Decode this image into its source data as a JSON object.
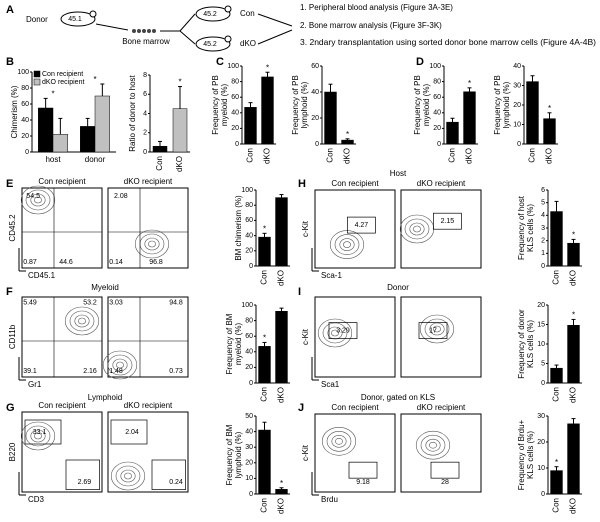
{
  "panel_a": {
    "label": "A",
    "donor": "Donor",
    "donor_mouse": "45.1",
    "bone_marrow": "Bone marrow",
    "recipient_mice": [
      "45.2",
      "45.2"
    ],
    "groups": [
      "Con",
      "dKO"
    ],
    "steps": [
      "1. Peripheral blood analysis (Figure 3A-3E)",
      "2. Bone marrow analysis (Figure 3F-3K)",
      "3. 2ndary transplantation using sorted donor bone marrow cells (Figure 4A-4B)"
    ]
  },
  "chart_data": [
    {
      "type": "bar",
      "panel": "B",
      "ylabel": [
        "Chimerism (%)"
      ],
      "categories": [
        "host",
        "donor"
      ],
      "series": [
        {
          "name": "Con recipient",
          "color": "#000000",
          "values": [
            55,
            32
          ],
          "errors": [
            12,
            10
          ]
        },
        {
          "name": "dKO recipient",
          "color": "#c0c0c0",
          "values": [
            22,
            70
          ],
          "errors": [
            20,
            15
          ]
        }
      ],
      "stars": [
        "*",
        "*"
      ],
      "ylim": [
        0,
        100
      ],
      "yticks": [
        0,
        20,
        40,
        60,
        80,
        100
      ]
    },
    {
      "type": "bar",
      "ylabel": [
        "Ratio of donor to host"
      ],
      "categories": [
        "Con",
        "dKO"
      ],
      "colors": [
        "#000000",
        "#c0c0c0"
      ],
      "values": [
        0.6,
        4.5
      ],
      "errors": [
        0.5,
        2.3
      ],
      "stars": [
        null,
        "*"
      ],
      "ylim": [
        0,
        8
      ],
      "yticks": [
        0,
        2,
        4,
        6,
        8
      ]
    },
    {
      "type": "bar",
      "panel": "C",
      "ylabel": [
        "Frequency of PB",
        "myeloid (%)"
      ],
      "categories": [
        "Con",
        "dKO"
      ],
      "color": "#000000",
      "values": [
        47,
        86
      ],
      "errors": [
        6,
        6
      ],
      "stars": [
        null,
        "*"
      ],
      "ylim": [
        0,
        100
      ],
      "yticks": [
        0,
        20,
        40,
        60,
        80,
        100
      ]
    },
    {
      "type": "bar",
      "ylabel": [
        "Frequency of PB",
        "lymphoid (%)"
      ],
      "categories": [
        "Con",
        "dKO"
      ],
      "color": "#000000",
      "values": [
        40,
        3
      ],
      "errors": [
        6,
        1
      ],
      "stars": [
        null,
        "*"
      ],
      "ylim": [
        0,
        60
      ],
      "yticks": [
        0,
        20,
        40,
        60
      ]
    },
    {
      "type": "bar",
      "panel": "D",
      "ylabel": [
        "Frequency of PB",
        "myeloid (%)"
      ],
      "categories": [
        "Con",
        "dKO"
      ],
      "color": "#000000",
      "values": [
        28,
        67
      ],
      "errors": [
        5,
        5
      ],
      "stars": [
        null,
        "*"
      ],
      "ylim": [
        0,
        100
      ],
      "yticks": [
        0,
        20,
        40,
        60,
        80,
        100
      ]
    },
    {
      "type": "bar",
      "ylabel": [
        "Frequency of PB",
        "lymphoid (%)"
      ],
      "categories": [
        "Con",
        "dKO"
      ],
      "color": "#000000",
      "values": [
        32,
        13
      ],
      "errors": [
        3,
        3
      ],
      "stars": [
        null,
        "*"
      ],
      "ylim": [
        0,
        40
      ],
      "yticks": [
        0,
        10,
        20,
        30,
        40
      ]
    },
    {
      "type": "bar",
      "ylabel": [
        "BM chimerism (%)"
      ],
      "categories": [
        "Con",
        "dKO"
      ],
      "color": "#000000",
      "values": [
        38,
        90
      ],
      "errors": [
        5,
        4
      ],
      "stars": [
        "*",
        null
      ],
      "ylim": [
        0,
        100
      ],
      "yticks": [
        0,
        20,
        40,
        60,
        80,
        100
      ]
    },
    {
      "type": "bar",
      "ylabel": [
        "Frequency of BM",
        "myeloid (%)"
      ],
      "categories": [
        "Con",
        "dKO"
      ],
      "color": "#000000",
      "values": [
        47,
        92
      ],
      "errors": [
        5,
        4
      ],
      "stars": [
        "*",
        null
      ],
      "ylim": [
        0,
        100
      ],
      "yticks": [
        0,
        20,
        40,
        60,
        80,
        100
      ]
    },
    {
      "type": "bar",
      "ylabel": [
        "Frequency of BM",
        "lymphoid (%)"
      ],
      "categories": [
        "Con",
        "dKO"
      ],
      "color": "#000000",
      "values": [
        41,
        3
      ],
      "errors": [
        5,
        1
      ],
      "stars": [
        null,
        "*"
      ],
      "ylim": [
        0,
        50
      ],
      "yticks": [
        0,
        10,
        20,
        30,
        40,
        50
      ]
    },
    {
      "type": "bar",
      "ylabel": [
        "Frequency of host",
        "KLS cells (%)"
      ],
      "categories": [
        "Con",
        "dKO"
      ],
      "color": "#000000",
      "values": [
        4.3,
        1.8
      ],
      "errors": [
        0.8,
        0.3
      ],
      "stars": [
        null,
        "*"
      ],
      "ylim": [
        0,
        6
      ],
      "yticks": [
        0,
        1,
        2,
        3,
        4,
        5,
        6
      ]
    },
    {
      "type": "bar",
      "ylabel": [
        "Frequency of donor",
        "KLS cells (%)"
      ],
      "categories": [
        "Con",
        "dKO"
      ],
      "color": "#000000",
      "values": [
        3.8,
        14.8
      ],
      "errors": [
        0.8,
        1.5
      ],
      "stars": [
        null,
        "*"
      ],
      "ylim": [
        0,
        20
      ],
      "yticks": [
        0,
        5,
        10,
        15,
        20
      ]
    },
    {
      "type": "bar",
      "ylabel": [
        "Frequency of Brdu+",
        "KLS cells (%)"
      ],
      "categories": [
        "Con",
        "dKO"
      ],
      "color": "#000000",
      "values": [
        9,
        27
      ],
      "errors": [
        1.5,
        2
      ],
      "stars": [
        "*",
        null
      ],
      "ylim": [
        0,
        30
      ],
      "yticks": [
        0,
        10,
        20,
        30
      ]
    }
  ],
  "flow_panels": [
    {
      "panel": "E",
      "samples": [
        "Con recipient",
        "dKO recipient"
      ],
      "y_axis": "CD45.2",
      "x_axis": "CD45.1",
      "gates": [
        [
          54.5,
          0.87,
          44.6
        ],
        [
          2.08,
          0.14,
          96.8
        ]
      ]
    },
    {
      "panel": "F",
      "title": "Myeloid",
      "y_axis": "CD11b",
      "x_axis": "Gr1",
      "gates": [
        [
          5.49,
          53.2,
          39.1,
          2.16
        ],
        [
          3.03,
          94.8,
          1.48,
          0.73
        ]
      ]
    },
    {
      "panel": "G",
      "title": "Lymphoid",
      "samples": [
        "Con recipient",
        "dKO recipient"
      ],
      "y_axis": "B220",
      "x_axis": "CD3",
      "gates": [
        [
          33.1,
          2.69
        ],
        [
          2.04,
          0.24
        ]
      ]
    },
    {
      "panel": "H",
      "title": "Host",
      "samples": [
        "Con recipient",
        "dKO recipient"
      ],
      "y_axis": "c-Kit",
      "x_axis": "Sca-1",
      "gates": [
        [
          4.27
        ],
        [
          2.15
        ]
      ]
    },
    {
      "panel": "I",
      "title": "Donor",
      "y_axis": "c-Kit",
      "x_axis": "Sca1",
      "gates": [
        [
          3.29
        ],
        [
          17
        ]
      ]
    },
    {
      "panel": "J",
      "title": "Donor, gated on KLS",
      "samples": [
        "Con recipient",
        "dKO recipient"
      ],
      "y_axis": "c-Kit",
      "x_axis": "Brdu",
      "gates": [
        [
          9.18
        ],
        [
          28
        ]
      ]
    }
  ]
}
